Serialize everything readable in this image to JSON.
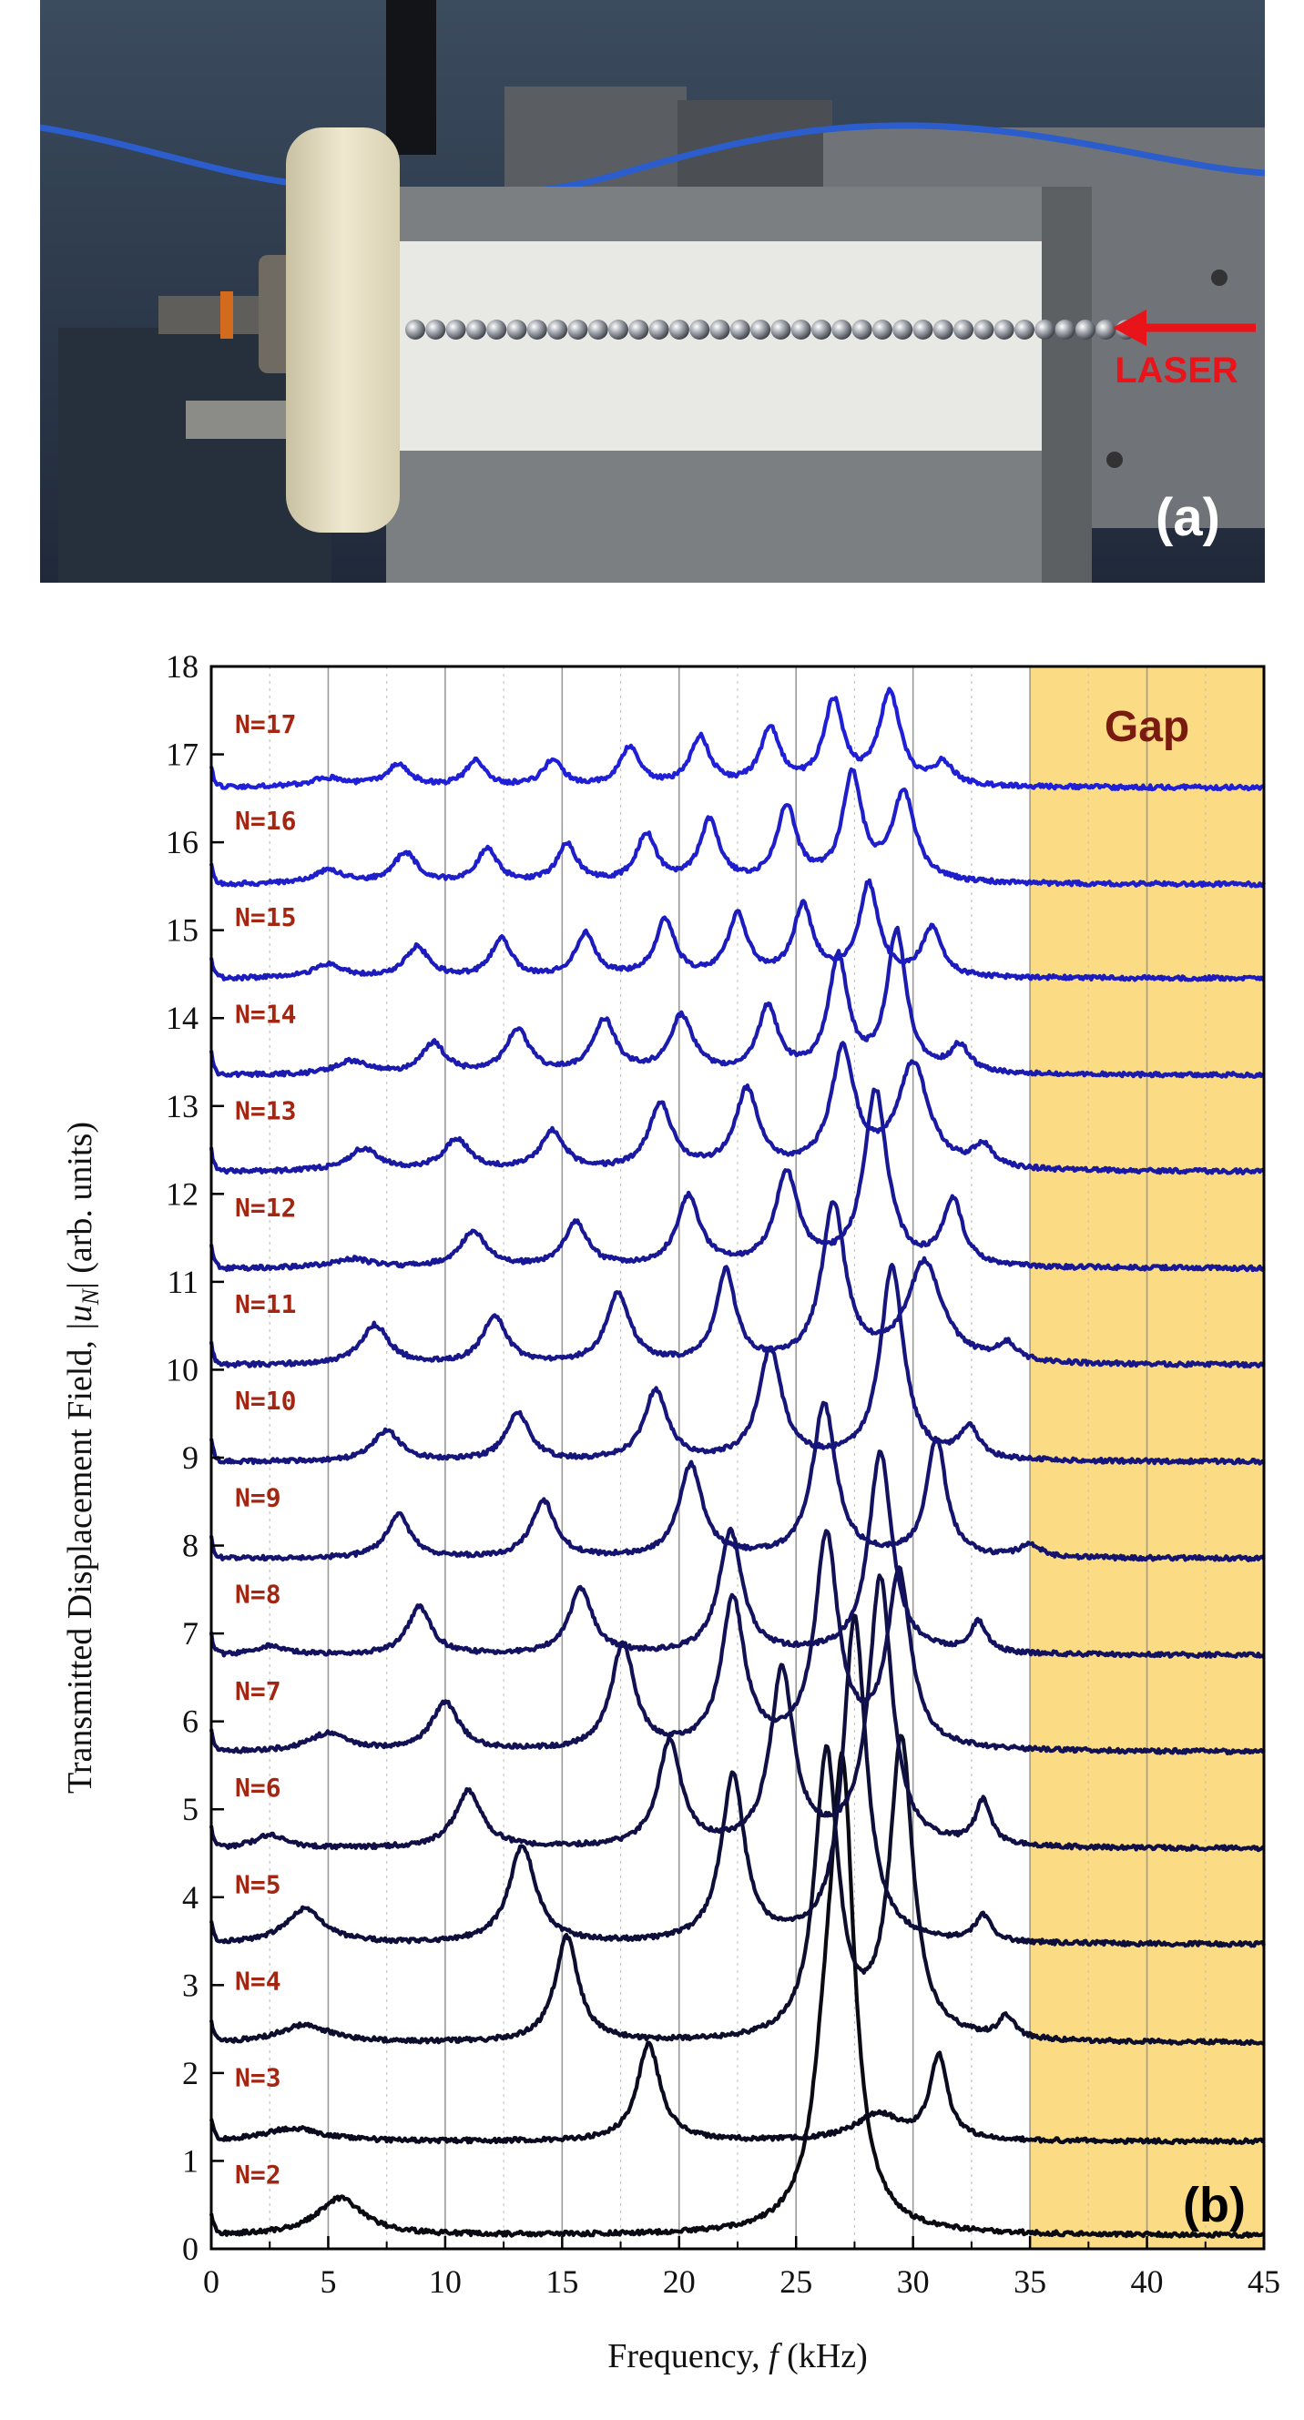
{
  "photo": {
    "laser_label": "LASER",
    "panel_label": "(a)",
    "colors": {
      "laser": "#e8141a"
    }
  },
  "chart_data": {
    "type": "line",
    "panel_label": "(b)",
    "gap_label": "Gap",
    "xlabel_prefix": "Frequency, ",
    "xlabel_var": "f",
    "xlabel_unit": " (kHz)",
    "ylabel_prefix": "Transmitted Displacement Field, ",
    "ylabel_abs": "|u",
    "ylabel_sub": "N",
    "ylabel_suffix": "|  (arb. units)",
    "xlim": [
      0,
      45
    ],
    "ylim": [
      0,
      18
    ],
    "x_ticks": [
      0,
      5,
      10,
      15,
      20,
      25,
      30,
      35,
      40,
      45
    ],
    "y_ticks": [
      0,
      1,
      2,
      3,
      4,
      5,
      6,
      7,
      8,
      9,
      10,
      11,
      12,
      13,
      14,
      15,
      16,
      17,
      18
    ],
    "gap_range_khz": [
      35,
      45
    ],
    "grid": "vertical",
    "colors": {
      "gap_fill": "#fbdc84",
      "curve_dark": "#0a0a12",
      "curve_bright": "#1f1fd8",
      "label": "#a32612"
    },
    "series": [
      {
        "name": "N=2",
        "offset": 0.0,
        "baseline": 0.15,
        "peaks": [
          [
            5.5,
            0.42,
            1.2
          ],
          [
            26.3,
            1.4,
            0.7
          ],
          [
            27.0,
            4.75,
            0.6
          ]
        ]
      },
      {
        "name": "N=3",
        "offset": 1.1,
        "baseline": 0.12,
        "peaks": [
          [
            3.5,
            0.15,
            1.5
          ],
          [
            18.7,
            1.1,
            0.6
          ],
          [
            28.5,
            0.3,
            1.2
          ],
          [
            31.1,
            0.95,
            0.45
          ]
        ]
      },
      {
        "name": "N=4",
        "offset": 2.2,
        "baseline": 0.14,
        "peaks": [
          [
            4.0,
            0.2,
            1.3
          ],
          [
            15.2,
            1.2,
            0.6
          ],
          [
            26.3,
            3.25,
            0.6
          ],
          [
            29.5,
            3.4,
            0.6
          ],
          [
            34.0,
            0.25,
            0.4
          ]
        ]
      },
      {
        "name": "N=5",
        "offset": 3.3,
        "baseline": 0.16,
        "peaks": [
          [
            4.0,
            0.4,
            1.0
          ],
          [
            13.3,
            1.1,
            0.7
          ],
          [
            22.3,
            1.9,
            0.6
          ],
          [
            27.5,
            3.7,
            0.6
          ],
          [
            33.0,
            0.3,
            0.4
          ]
        ]
      },
      {
        "name": "N=6",
        "offset": 4.4,
        "baseline": 0.15,
        "peaks": [
          [
            2.5,
            0.15,
            0.8
          ],
          [
            11.0,
            0.65,
            0.7
          ],
          [
            19.6,
            1.2,
            0.6
          ],
          [
            24.4,
            2.0,
            0.6
          ],
          [
            28.6,
            3.05,
            0.6
          ],
          [
            33.0,
            0.5,
            0.4
          ]
        ]
      },
      {
        "name": "N=7",
        "offset": 5.5,
        "baseline": 0.15,
        "peaks": [
          [
            5.0,
            0.2,
            1.0
          ],
          [
            10.0,
            0.55,
            0.7
          ],
          [
            17.6,
            1.2,
            0.6
          ],
          [
            22.3,
            1.7,
            0.6
          ],
          [
            26.3,
            2.4,
            0.6
          ],
          [
            29.4,
            2.0,
            0.6
          ]
        ]
      },
      {
        "name": "N=8",
        "offset": 6.6,
        "baseline": 0.15,
        "peaks": [
          [
            2.5,
            0.1,
            0.8
          ],
          [
            8.9,
            0.55,
            0.6
          ],
          [
            15.8,
            0.75,
            0.6
          ],
          [
            22.2,
            1.4,
            0.6
          ],
          [
            28.6,
            2.3,
            0.6
          ],
          [
            32.8,
            0.35,
            0.4
          ]
        ]
      },
      {
        "name": "N=9",
        "offset": 7.7,
        "baseline": 0.15,
        "peaks": [
          [
            8.0,
            0.5,
            0.6
          ],
          [
            14.2,
            0.65,
            0.6
          ],
          [
            20.5,
            1.05,
            0.6
          ],
          [
            26.2,
            1.75,
            0.6
          ],
          [
            31.0,
            1.35,
            0.5
          ],
          [
            35.0,
            0.15,
            0.5
          ]
        ]
      },
      {
        "name": "N=10",
        "offset": 8.8,
        "baseline": 0.15,
        "peaks": [
          [
            7.5,
            0.35,
            0.7
          ],
          [
            13.1,
            0.55,
            0.6
          ],
          [
            19.0,
            0.8,
            0.6
          ],
          [
            23.9,
            1.25,
            0.6
          ],
          [
            29.1,
            2.2,
            0.6
          ],
          [
            32.4,
            0.35,
            0.5
          ]
        ]
      },
      {
        "name": "N=11",
        "offset": 9.9,
        "baseline": 0.15,
        "peaks": [
          [
            7.0,
            0.45,
            0.7
          ],
          [
            12.1,
            0.55,
            0.6
          ],
          [
            17.4,
            0.8,
            0.6
          ],
          [
            22.0,
            1.05,
            0.5
          ],
          [
            26.6,
            1.8,
            0.6
          ],
          [
            30.5,
            1.15,
            0.9
          ],
          [
            34.0,
            0.2,
            0.5
          ]
        ]
      },
      {
        "name": "N=12",
        "offset": 11.0,
        "baseline": 0.15,
        "peaks": [
          [
            6.0,
            0.1,
            1.0
          ],
          [
            11.2,
            0.4,
            0.7
          ],
          [
            15.6,
            0.5,
            0.6
          ],
          [
            20.4,
            0.8,
            0.6
          ],
          [
            24.6,
            1.05,
            0.6
          ],
          [
            28.4,
            2.0,
            0.6
          ],
          [
            31.7,
            0.75,
            0.5
          ]
        ]
      },
      {
        "name": "N=13",
        "offset": 12.1,
        "baseline": 0.15,
        "peaks": [
          [
            6.5,
            0.25,
            0.8
          ],
          [
            10.5,
            0.35,
            0.7
          ],
          [
            14.6,
            0.45,
            0.6
          ],
          [
            19.2,
            0.75,
            0.6
          ],
          [
            22.9,
            0.9,
            0.6
          ],
          [
            27.0,
            1.35,
            0.6
          ],
          [
            30.0,
            1.2,
            0.8
          ],
          [
            33.0,
            0.25,
            0.5
          ]
        ]
      },
      {
        "name": "N=14",
        "offset": 13.2,
        "baseline": 0.15,
        "peaks": [
          [
            6.0,
            0.15,
            0.8
          ],
          [
            9.5,
            0.35,
            0.6
          ],
          [
            13.1,
            0.5,
            0.6
          ],
          [
            16.8,
            0.6,
            0.6
          ],
          [
            20.1,
            0.65,
            0.6
          ],
          [
            23.8,
            0.75,
            0.5
          ],
          [
            26.8,
            1.3,
            0.5
          ],
          [
            29.3,
            1.6,
            0.5
          ],
          [
            32.0,
            0.3,
            0.5
          ]
        ]
      },
      {
        "name": "N=15",
        "offset": 14.3,
        "baseline": 0.15,
        "peaks": [
          [
            5.0,
            0.15,
            0.8
          ],
          [
            8.8,
            0.35,
            0.6
          ],
          [
            12.4,
            0.45,
            0.5
          ],
          [
            16.0,
            0.5,
            0.5
          ],
          [
            19.4,
            0.65,
            0.5
          ],
          [
            22.5,
            0.7,
            0.5
          ],
          [
            25.3,
            0.8,
            0.5
          ],
          [
            28.1,
            1.05,
            0.5
          ],
          [
            30.8,
            0.55,
            0.5
          ]
        ]
      },
      {
        "name": "N=16",
        "offset": 15.4,
        "baseline": 0.12,
        "peaks": [
          [
            5.0,
            0.15,
            0.8
          ],
          [
            8.3,
            0.35,
            0.6
          ],
          [
            11.8,
            0.4,
            0.5
          ],
          [
            15.2,
            0.45,
            0.5
          ],
          [
            18.6,
            0.55,
            0.5
          ],
          [
            21.3,
            0.7,
            0.5
          ],
          [
            24.6,
            0.85,
            0.5
          ],
          [
            27.4,
            1.2,
            0.5
          ],
          [
            29.6,
            1.0,
            0.6
          ]
        ]
      },
      {
        "name": "N=17",
        "offset": 16.5,
        "baseline": 0.12,
        "peaks": [
          [
            5.0,
            0.1,
            1.0
          ],
          [
            8.0,
            0.25,
            0.6
          ],
          [
            11.3,
            0.3,
            0.5
          ],
          [
            14.6,
            0.3,
            0.5
          ],
          [
            17.9,
            0.45,
            0.5
          ],
          [
            20.9,
            0.55,
            0.5
          ],
          [
            23.9,
            0.65,
            0.5
          ],
          [
            26.6,
            0.95,
            0.5
          ],
          [
            29.0,
            1.05,
            0.55
          ],
          [
            31.3,
            0.25,
            0.5
          ]
        ]
      }
    ]
  }
}
